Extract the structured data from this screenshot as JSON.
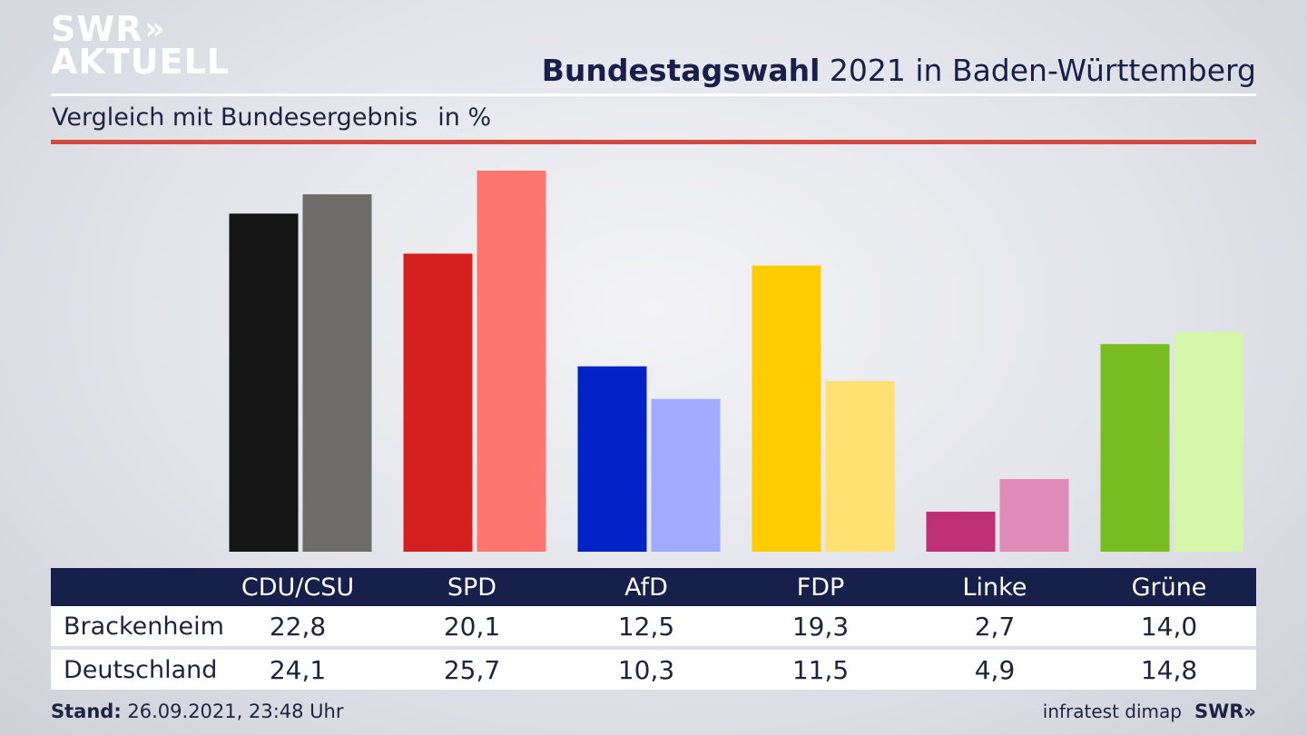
{
  "brand": {
    "logo_line1": "SWR",
    "logo_chevrons": "»",
    "logo_line2": "AKTUELL"
  },
  "header": {
    "title_bold": "Bundestagswahl",
    "title_rest": " 2021 in Baden-Württemberg",
    "subtitle": "Vergleich mit Bundesergebnis",
    "unit": "in %"
  },
  "chart_data": {
    "type": "bar",
    "categories": [
      "CDU/CSU",
      "SPD",
      "AfD",
      "FDP",
      "Linke",
      "Grüne"
    ],
    "series": [
      {
        "name": "Brackenheim",
        "values": [
          22.8,
          20.1,
          12.5,
          19.3,
          2.7,
          14.0
        ]
      },
      {
        "name": "Deutschland",
        "values": [
          24.1,
          25.7,
          10.3,
          11.5,
          4.9,
          14.8
        ]
      }
    ],
    "ylim": [
      0,
      25.7
    ],
    "grid": false,
    "colors": {
      "Brackenheim": [
        "#141414",
        "#d61f1f",
        "#0022c6",
        "#ffcc00",
        "#bf2f78",
        "#78be20"
      ],
      "Deutschland": [
        "#6e6c6a",
        "#ff7670",
        "#9eabff",
        "#ffe070",
        "#e08bb8",
        "#d5f7aa"
      ]
    }
  },
  "table": {
    "headers": [
      "",
      "CDU/CSU",
      "SPD",
      "AfD",
      "FDP",
      "Linke",
      "Grüne"
    ],
    "rows": [
      {
        "label": "Brackenheim",
        "values": [
          "22,8",
          "20,1",
          "12,5",
          "19,3",
          "2,7",
          "14,0"
        ]
      },
      {
        "label": "Deutschland",
        "values": [
          "24,1",
          "25,7",
          "10,3",
          "11,5",
          "4,9",
          "14,8"
        ]
      }
    ]
  },
  "footer": {
    "stand_label": "Stand:",
    "stand_value": " 26.09.2021, 23:48 Uhr",
    "source": "infratest dimap",
    "brand_small": "SWR»"
  }
}
